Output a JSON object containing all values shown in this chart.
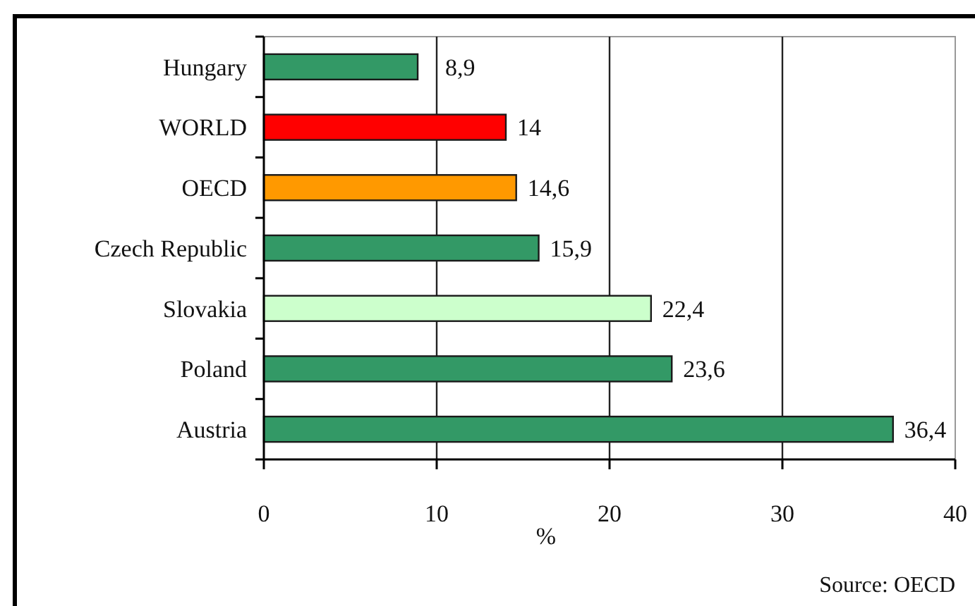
{
  "chart_data": {
    "type": "bar",
    "orientation": "horizontal",
    "categories": [
      "Hungary",
      "WORLD",
      "OECD",
      "Czech Republic",
      "Slovakia",
      "Poland",
      "Austria"
    ],
    "values": [
      8.9,
      14,
      14.6,
      15.9,
      22.4,
      23.6,
      36.4
    ],
    "colors": [
      "#339966",
      "#ff0000",
      "#ff9900",
      "#339966",
      "#ccffcc",
      "#339966",
      "#339966"
    ],
    "value_labels": [
      "8,9",
      "14",
      "14,6",
      "15,9",
      "22,4",
      "23,6",
      "36,4"
    ],
    "xlabel": "%",
    "xlim": [
      0,
      40
    ],
    "xticks": [
      0,
      10,
      20,
      30,
      40
    ],
    "grid": "x",
    "annotations": [
      "Source: OECD"
    ]
  }
}
